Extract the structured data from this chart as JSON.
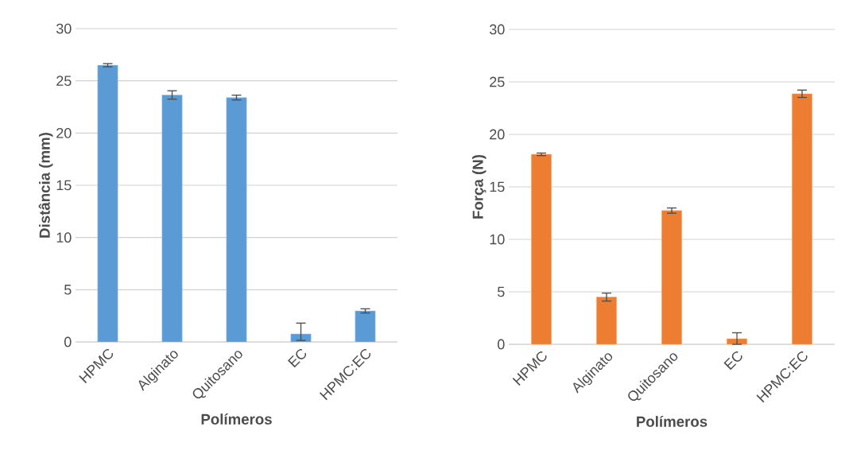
{
  "chart_data": [
    {
      "type": "bar",
      "xlabel": "Polímeros",
      "ylabel": "Distância (mm)",
      "categories": [
        "HPMC",
        "Alginato",
        "Quitosano",
        "EC",
        "HPMC:EC"
      ],
      "color": "#5b9bd5",
      "values": [
        26.5,
        23.65,
        23.4,
        0.76,
        2.97
      ],
      "errors": [
        0.15,
        0.4,
        0.23,
        [
          0.15,
          1.8
        ],
        0.2
      ],
      "ylim": [
        0,
        30
      ],
      "yticks": [
        0,
        5,
        10,
        15,
        20,
        25,
        30
      ],
      "grid": "y"
    },
    {
      "type": "bar",
      "xlabel": "Polímeros",
      "ylabel": "Força (N)",
      "categories": [
        "HPMC",
        "Alginato",
        "Quitosano",
        "EC",
        "HPMC:EC"
      ],
      "color": "#ed7d31",
      "values": [
        18.1,
        4.5,
        12.74,
        0.53,
        23.87
      ],
      "errors": [
        0.12,
        0.38,
        0.25,
        [
          0,
          1.1
        ],
        0.35
      ],
      "ylim": [
        0,
        30
      ],
      "yticks": [
        0,
        5,
        10,
        15,
        20,
        25,
        30
      ],
      "grid": "y"
    }
  ]
}
